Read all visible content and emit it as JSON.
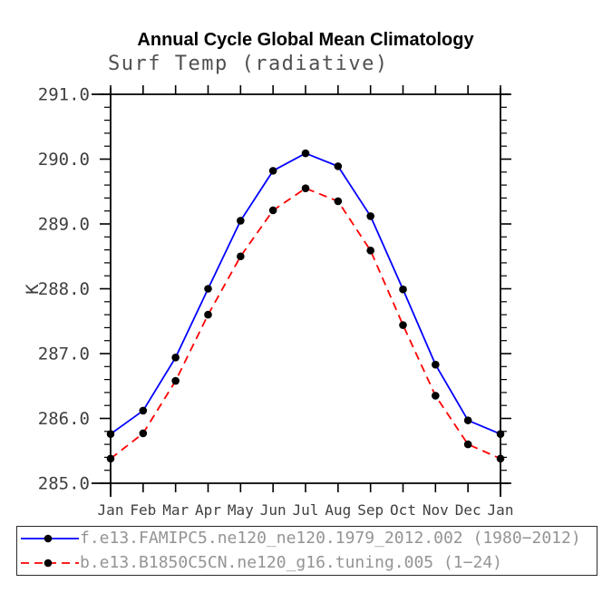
{
  "header": {
    "title": "Annual Cycle Global Mean Climatology",
    "subtitle": "Surf Temp (radiative)"
  },
  "chart_data": {
    "type": "line",
    "title": "Annual Cycle Global Mean Climatology",
    "subtitle": "Surf Temp (radiative)",
    "xlabel": "",
    "ylabel": "K",
    "categories": [
      "Jan",
      "Feb",
      "Mar",
      "Apr",
      "May",
      "Jun",
      "Jul",
      "Aug",
      "Sep",
      "Oct",
      "Nov",
      "Dec",
      "Jan"
    ],
    "ylim": [
      285.0,
      291.0
    ],
    "ytick_step": 1.0,
    "yminor_step": 0.2,
    "ytick_labels": [
      "285.0",
      "286.0",
      "287.0",
      "288.0",
      "289.0",
      "290.0",
      "291.0"
    ],
    "grid": false,
    "legend_position": "bottom-left-box",
    "series": [
      {
        "name": "f.e13.FAMIPC5.ne120_ne120.1979_2012.002 (1980−2012)",
        "color": "#0000ff",
        "line_style": "solid",
        "marker": "filled-circle",
        "marker_color": "#000000",
        "values": [
          285.76,
          286.12,
          286.94,
          288.0,
          289.05,
          289.82,
          290.09,
          289.89,
          289.12,
          287.99,
          286.83,
          285.97,
          285.76
        ]
      },
      {
        "name": "b.e13.B1850C5CN.ne120_g16.tuning.005 (1−24)",
        "color": "#ff0000",
        "line_style": "dashed",
        "marker": "filled-circle",
        "marker_color": "#000000",
        "values": [
          285.38,
          285.77,
          286.58,
          287.6,
          288.5,
          289.21,
          289.55,
          289.35,
          288.59,
          287.44,
          286.35,
          285.6,
          285.38
        ]
      }
    ],
    "colors": {
      "axis": "#000000",
      "tick_label": "#3f3f3f",
      "subtitle": "#4f4f4f",
      "legend_text": "#949494",
      "background": "#ffffff"
    }
  }
}
